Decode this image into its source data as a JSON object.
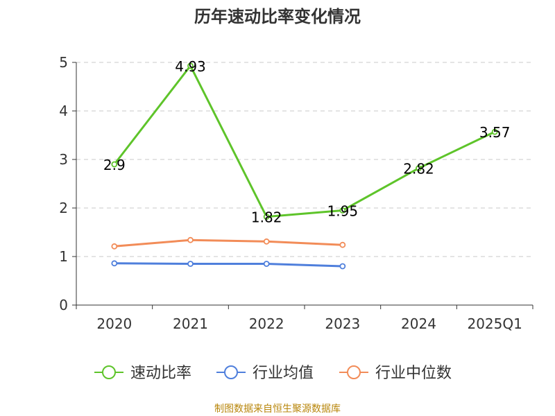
{
  "chart_data": {
    "type": "line",
    "title": "历年速动比率变化情况",
    "categories": [
      "2020",
      "2021",
      "2022",
      "2023",
      "2024",
      "2025Q1"
    ],
    "ylim": [
      0,
      5
    ],
    "yticks": [
      "0",
      "1",
      "2",
      "3",
      "4",
      "5"
    ],
    "grid": true,
    "legend_placement": "bottom-center",
    "series": [
      {
        "name": "速动比率",
        "color": "#5ec42a",
        "values": [
          2.9,
          4.93,
          1.82,
          1.95,
          2.82,
          3.57
        ],
        "labels": [
          "2.9",
          "4.93",
          "1.82",
          "1.95",
          "2.82",
          "3.57"
        ]
      },
      {
        "name": "行业均值",
        "color": "#4f7fdc",
        "values": [
          0.86,
          0.85,
          0.85,
          0.8,
          null,
          null
        ]
      },
      {
        "name": "行业中位数",
        "color": "#f28c58",
        "values": [
          1.21,
          1.34,
          1.31,
          1.24,
          null,
          null
        ]
      }
    ]
  },
  "source": "制图数据来自恒生聚源数据库"
}
